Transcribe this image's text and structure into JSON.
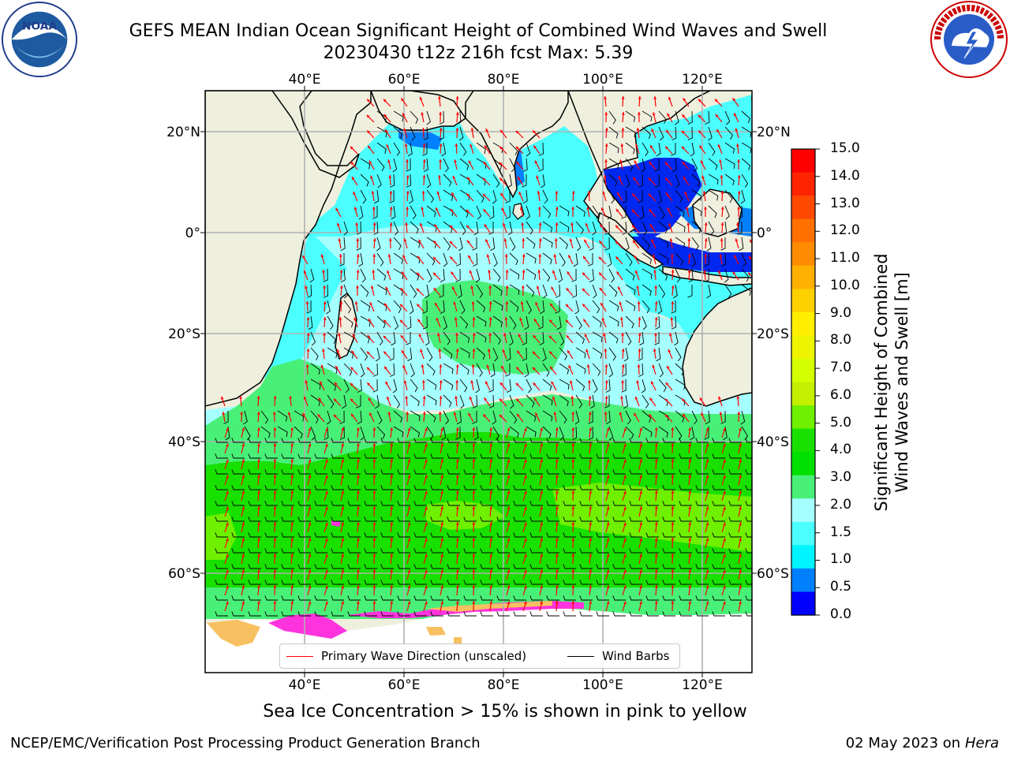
{
  "header": {
    "title_line1": "GEFS MEAN Indian Ocean Significant Height of Combined Wind Waves and Swell",
    "title_line2": "20230430 t12z 216h fcst   Max: 5.39"
  },
  "logos": {
    "left": {
      "icon": "noaa-logo-icon",
      "text": "NOAA",
      "ring_text": "NATIONAL OCEANIC AND ATMOSPHERIC ADMINISTRATION · U.S. DEPARTMENT OF COMMERCE"
    },
    "right": {
      "icon": "nws-logo-icon",
      "ring_text": "NATIONAL WEATHER SERVICE"
    }
  },
  "map": {
    "lon_ticks": [
      "40°E",
      "60°E",
      "80°E",
      "100°E",
      "120°E"
    ],
    "lat_ticks": [
      "20°N",
      "0°",
      "20°S",
      "40°S",
      "60°S"
    ],
    "lon_range": [
      20,
      130
    ],
    "lat_range": [
      -72,
      28
    ],
    "colors": {
      "land": "#efefde",
      "ice_white": "#ffffff",
      "ice_pink": "#ff33dd",
      "ice_orange": "#f7c060",
      "wave_dir": "#ff0000",
      "barb": "#000000"
    }
  },
  "legend": {
    "wave_label": "Primary Wave Direction (unscaled)",
    "barb_label": "Wind Barbs"
  },
  "colorbar": {
    "title_line1": "Significant Height of Combined",
    "title_line2": "Wind Waves and Swell [m]",
    "labels": [
      "15.0",
      "14.0",
      "13.0",
      "12.0",
      "11.0",
      "10.0",
      "9.0",
      "8.0",
      "7.0",
      "6.0",
      "5.0",
      "4.0",
      "3.0",
      "2.0",
      "1.5",
      "1.0",
      "0.5",
      "0.0"
    ],
    "colors_top_down": [
      "#ff0000",
      "#ff2400",
      "#ff4a00",
      "#ff7000",
      "#ff8c00",
      "#ffb000",
      "#ffd000",
      "#ffee00",
      "#eef400",
      "#d4ff00",
      "#c4f000",
      "#6ef000",
      "#18e000",
      "#00e000",
      "#48f078",
      "#a6ffff",
      "#4cffff",
      "#00f4ff",
      "#0080ff",
      "#0000ff"
    ]
  },
  "notes": {
    "ice": "Sea Ice Concentration > 15% is shown in pink to yellow"
  },
  "footer": {
    "left": "NCEP/EMC/Verification Post Processing Product Generation Branch",
    "date": "02 May 2023 on",
    "machine": "Hera"
  }
}
